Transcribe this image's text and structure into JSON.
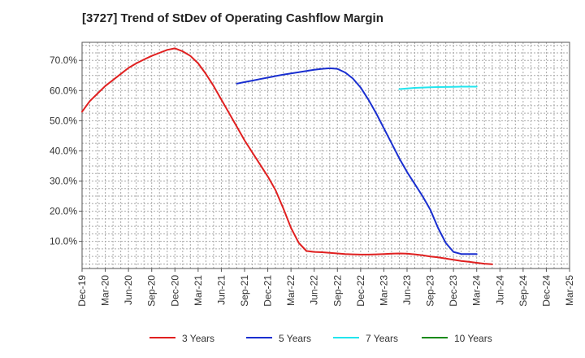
{
  "title": "[3727]  Trend of StDev of Operating Cashflow Margin",
  "chart_data": {
    "type": "line",
    "title": "[3727]  Trend of StDev of Operating Cashflow Margin",
    "xlabel": "",
    "ylabel": "",
    "x_ticks": [
      "Dec-19",
      "Mar-20",
      "Jun-20",
      "Sep-20",
      "Dec-20",
      "Mar-21",
      "Jun-21",
      "Sep-21",
      "Dec-21",
      "Mar-22",
      "Jun-22",
      "Sep-22",
      "Dec-22",
      "Mar-23",
      "Jun-23",
      "Sep-23",
      "Dec-23",
      "Mar-24",
      "Jun-24",
      "Sep-24",
      "Dec-24",
      "Mar-25"
    ],
    "y_ticks": [
      "10.0%",
      "20.0%",
      "30.0%",
      "40.0%",
      "50.0%",
      "60.0%",
      "70.0%"
    ],
    "y_tick_values": [
      10,
      20,
      30,
      40,
      50,
      60,
      70
    ],
    "xlim": [
      0,
      63
    ],
    "ylim": [
      1,
      76
    ],
    "grid": true,
    "legend_position": "bottom",
    "series": [
      {
        "name": "3 Years",
        "color": "#e02020",
        "start_index": 0,
        "values": [
          53,
          56.5,
          59,
          61.5,
          63.5,
          65.5,
          67.5,
          69,
          70.3,
          71.5,
          72.5,
          73.5,
          74,
          73,
          71.5,
          69,
          65.5,
          61.5,
          57,
          52.5,
          48,
          43.5,
          39.5,
          35.5,
          31.5,
          27,
          21,
          14.5,
          9.5,
          6.8,
          6.5,
          6.4,
          6.2,
          6.0,
          5.8,
          5.7,
          5.6,
          5.6,
          5.7,
          5.8,
          5.9,
          6.0,
          5.9,
          5.7,
          5.4,
          5.0,
          4.7,
          4.3,
          3.9,
          3.5,
          3.2,
          2.9,
          2.6,
          2.4
        ]
      },
      {
        "name": "5 Years",
        "color": "#1a2fd0",
        "start_index": 20,
        "values": [
          62.3,
          62.8,
          63.3,
          63.8,
          64.3,
          64.8,
          65.3,
          65.7,
          66.1,
          66.5,
          66.9,
          67.2,
          67.4,
          67.2,
          66,
          64,
          61,
          57,
          52.5,
          47.5,
          42.5,
          37.5,
          33,
          29,
          25,
          20.5,
          14.5,
          9.5,
          6.5,
          5.8,
          5.8,
          5.8
        ]
      },
      {
        "name": "7 Years",
        "color": "#22e5ee",
        "start_index": 41,
        "values": [
          60.5,
          60.7,
          60.9,
          61.0,
          61.1,
          61.15,
          61.2,
          61.25,
          61.3,
          61.3,
          61.3
        ]
      },
      {
        "name": "10 Years",
        "color": "#1a8a1a",
        "start_index": 0,
        "values": []
      }
    ]
  }
}
